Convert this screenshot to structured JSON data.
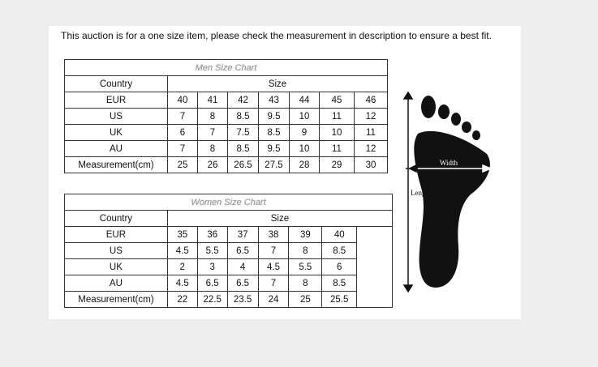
{
  "notice": "This auction is for a one size item, please check the measurement in description to ensure a best fit.",
  "men": {
    "title": "Men Size Chart",
    "country_header": "Country",
    "size_header": "Size",
    "rows": [
      {
        "label": "EUR",
        "values": [
          "40",
          "41",
          "42",
          "43",
          "44",
          "45",
          "46"
        ]
      },
      {
        "label": "US",
        "values": [
          "7",
          "8",
          "8.5",
          "9.5",
          "10",
          "11",
          "12"
        ]
      },
      {
        "label": "UK",
        "values": [
          "6",
          "7",
          "7.5",
          "8.5",
          "9",
          "10",
          "11"
        ]
      },
      {
        "label": "AU",
        "values": [
          "7",
          "8",
          "8.5",
          "9.5",
          "10",
          "11",
          "12"
        ]
      },
      {
        "label": "Measurement(cm)",
        "values": [
          "25",
          "26",
          "26.5",
          "27.5",
          "28",
          "29",
          "30"
        ]
      }
    ]
  },
  "women": {
    "title": "Women Size Chart",
    "country_header": "Country",
    "size_header": "Size",
    "rows": [
      {
        "label": "EUR",
        "values": [
          "35",
          "36",
          "37",
          "38",
          "39",
          "40"
        ]
      },
      {
        "label": "US",
        "values": [
          "4.5",
          "5.5",
          "6.5",
          "7",
          "8",
          "8.5"
        ]
      },
      {
        "label": "UK",
        "values": [
          "2",
          "3",
          "4",
          "4.5",
          "5.5",
          "6"
        ]
      },
      {
        "label": "AU",
        "values": [
          "4.5",
          "6.5",
          "6.5",
          "7",
          "8",
          "8.5"
        ]
      },
      {
        "label": "Measurement(cm)",
        "values": [
          "22",
          "22.5",
          "23.5",
          "24",
          "25",
          "25.5"
        ]
      }
    ]
  },
  "diagram": {
    "width_label": "Width",
    "length_label": "Length"
  }
}
